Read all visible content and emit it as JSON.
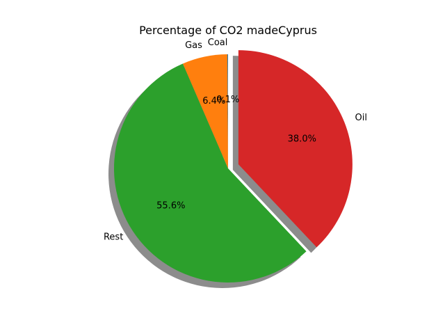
{
  "chart_data": {
    "type": "pie",
    "title": "Percentage of CO2 madeCyprus",
    "categories": [
      "Coal",
      "Gas",
      "Rest",
      "Oil"
    ],
    "values": [
      0.1,
      6.4,
      55.6,
      38.0
    ],
    "percent_labels": [
      "0.1%",
      "6.4%",
      "55.6%",
      "38.0%"
    ],
    "colors": [
      "#1f77b4",
      "#ff7f0e",
      "#2ca02c",
      "#d62728"
    ],
    "exploded": [
      false,
      false,
      false,
      true
    ],
    "start_angle_deg": 90,
    "direction": "counterclockwise",
    "shadow": true
  }
}
